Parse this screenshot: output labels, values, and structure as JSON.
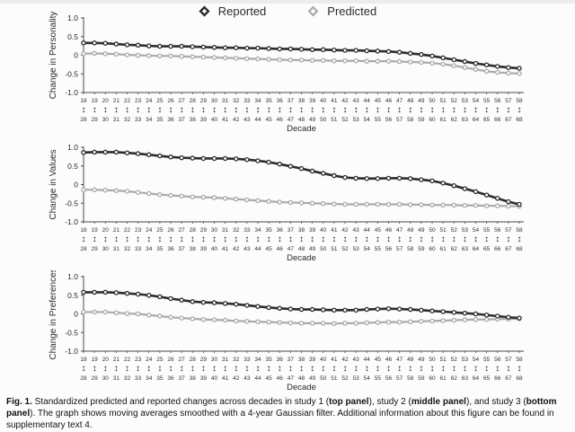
{
  "legend": {
    "reported": "Reported",
    "predicted": "Predicted"
  },
  "colors": {
    "reported": "#2d2d2d",
    "predicted": "#aaaaaa",
    "axis": "#4a4a4a",
    "tick_text": "#2a2a2a",
    "x_text": "#333333",
    "marker_fill": "#ffffff"
  },
  "x_axis": {
    "label": "Decade",
    "arrow_icon": "↕",
    "row1": [
      18,
      19,
      20,
      21,
      22,
      23,
      24,
      25,
      26,
      27,
      28,
      29,
      30,
      31,
      32,
      33,
      34,
      35,
      36,
      37,
      38,
      39,
      40,
      41,
      42,
      43,
      44,
      45,
      46,
      47,
      48,
      49,
      50,
      51,
      52,
      53,
      54,
      55,
      56,
      57,
      58
    ],
    "row2": [
      28,
      29,
      30,
      31,
      32,
      33,
      34,
      35,
      36,
      37,
      38,
      39,
      40,
      41,
      42,
      43,
      44,
      45,
      46,
      47,
      48,
      49,
      50,
      51,
      52,
      53,
      54,
      55,
      56,
      57,
      58,
      59,
      60,
      61,
      62,
      63,
      64,
      65,
      66,
      67,
      68
    ]
  },
  "y_axis": {
    "tick_labels": [
      "1.0",
      "0.5",
      "0",
      "-0.5",
      "-1.0"
    ],
    "tick_values": [
      1.0,
      0.5,
      0,
      -0.5,
      -1.0
    ],
    "min": -1.0,
    "max": 1.0
  },
  "chart_data": [
    {
      "type": "line",
      "panel": "top",
      "study": "study 1",
      "ylabel": "Change in Personality",
      "xlabel": "Decade",
      "ylim": [
        -1.0,
        1.0
      ],
      "x": [
        18,
        19,
        20,
        21,
        22,
        23,
        24,
        25,
        26,
        27,
        28,
        29,
        30,
        31,
        32,
        33,
        34,
        35,
        36,
        37,
        38,
        39,
        40,
        41,
        42,
        43,
        44,
        45,
        46,
        47,
        48,
        49,
        50,
        51,
        52,
        53,
        54,
        55,
        56,
        57,
        58
      ],
      "series": [
        {
          "name": "Reported",
          "values": [
            0.33,
            0.33,
            0.32,
            0.3,
            0.28,
            0.27,
            0.25,
            0.24,
            0.24,
            0.24,
            0.23,
            0.22,
            0.21,
            0.2,
            0.2,
            0.19,
            0.19,
            0.18,
            0.17,
            0.17,
            0.16,
            0.15,
            0.15,
            0.14,
            0.13,
            0.13,
            0.12,
            0.11,
            0.1,
            0.08,
            0.05,
            0.02,
            -0.02,
            -0.07,
            -0.12,
            -0.17,
            -0.22,
            -0.26,
            -0.3,
            -0.33,
            -0.35
          ]
        },
        {
          "name": "Predicted",
          "values": [
            0.04,
            0.05,
            0.04,
            0.03,
            0.01,
            0.0,
            -0.01,
            -0.02,
            -0.02,
            -0.03,
            -0.04,
            -0.05,
            -0.06,
            -0.07,
            -0.08,
            -0.09,
            -0.1,
            -0.11,
            -0.12,
            -0.13,
            -0.13,
            -0.14,
            -0.14,
            -0.15,
            -0.15,
            -0.15,
            -0.16,
            -0.16,
            -0.16,
            -0.17,
            -0.18,
            -0.19,
            -0.21,
            -0.24,
            -0.28,
            -0.33,
            -0.38,
            -0.43,
            -0.46,
            -0.48,
            -0.49
          ]
        }
      ]
    },
    {
      "type": "line",
      "panel": "middle",
      "study": "study 2",
      "ylabel": "Change in Values",
      "xlabel": "Decade",
      "ylim": [
        -1.0,
        1.0
      ],
      "x": [
        18,
        19,
        20,
        21,
        22,
        23,
        24,
        25,
        26,
        27,
        28,
        29,
        30,
        31,
        32,
        33,
        34,
        35,
        36,
        37,
        38,
        39,
        40,
        41,
        42,
        43,
        44,
        45,
        46,
        47,
        48,
        49,
        50,
        51,
        52,
        53,
        54,
        55,
        56,
        57,
        58
      ],
      "series": [
        {
          "name": "Reported",
          "values": [
            0.86,
            0.87,
            0.87,
            0.87,
            0.85,
            0.83,
            0.8,
            0.77,
            0.74,
            0.72,
            0.71,
            0.7,
            0.7,
            0.7,
            0.69,
            0.67,
            0.64,
            0.6,
            0.55,
            0.49,
            0.43,
            0.36,
            0.3,
            0.24,
            0.19,
            0.17,
            0.16,
            0.16,
            0.17,
            0.17,
            0.16,
            0.13,
            0.1,
            0.04,
            -0.03,
            -0.11,
            -0.19,
            -0.28,
            -0.37,
            -0.46,
            -0.53
          ]
        },
        {
          "name": "Predicted",
          "values": [
            -0.14,
            -0.14,
            -0.15,
            -0.16,
            -0.18,
            -0.21,
            -0.24,
            -0.27,
            -0.29,
            -0.31,
            -0.33,
            -0.34,
            -0.35,
            -0.37,
            -0.39,
            -0.41,
            -0.43,
            -0.45,
            -0.47,
            -0.48,
            -0.49,
            -0.5,
            -0.51,
            -0.52,
            -0.53,
            -0.53,
            -0.53,
            -0.53,
            -0.53,
            -0.53,
            -0.54,
            -0.54,
            -0.55,
            -0.55,
            -0.55,
            -0.56,
            -0.56,
            -0.57,
            -0.57,
            -0.58,
            -0.58
          ]
        }
      ]
    },
    {
      "type": "line",
      "panel": "bottom",
      "study": "study 3",
      "ylabel": "Change in Preferences",
      "xlabel": "Decade",
      "ylim": [
        -1.0,
        1.0
      ],
      "x": [
        18,
        19,
        20,
        21,
        22,
        23,
        24,
        25,
        26,
        27,
        28,
        29,
        30,
        31,
        32,
        33,
        34,
        35,
        36,
        37,
        38,
        39,
        40,
        41,
        42,
        43,
        44,
        45,
        46,
        47,
        48,
        49,
        50,
        51,
        52,
        53,
        54,
        55,
        56,
        57,
        58
      ],
      "series": [
        {
          "name": "Reported",
          "values": [
            0.58,
            0.58,
            0.58,
            0.57,
            0.55,
            0.53,
            0.5,
            0.46,
            0.41,
            0.37,
            0.33,
            0.31,
            0.3,
            0.28,
            0.26,
            0.23,
            0.2,
            0.17,
            0.15,
            0.13,
            0.12,
            0.12,
            0.11,
            0.1,
            0.1,
            0.1,
            0.12,
            0.13,
            0.14,
            0.13,
            0.12,
            0.1,
            0.08,
            0.06,
            0.04,
            0.02,
            0.0,
            -0.03,
            -0.06,
            -0.09,
            -0.11
          ]
        },
        {
          "name": "Predicted",
          "values": [
            0.05,
            0.05,
            0.05,
            0.03,
            0.01,
            0.0,
            -0.03,
            -0.06,
            -0.09,
            -0.11,
            -0.13,
            -0.15,
            -0.16,
            -0.17,
            -0.19,
            -0.2,
            -0.21,
            -0.22,
            -0.23,
            -0.24,
            -0.25,
            -0.25,
            -0.25,
            -0.26,
            -0.25,
            -0.25,
            -0.24,
            -0.23,
            -0.22,
            -0.22,
            -0.21,
            -0.2,
            -0.19,
            -0.18,
            -0.17,
            -0.16,
            -0.15,
            -0.15,
            -0.14,
            -0.14,
            -0.13
          ]
        }
      ]
    }
  ],
  "caption": {
    "segments": [
      {
        "text": "Fig. 1.",
        "bold": true
      },
      {
        "text": " Standardized predicted and reported changes across decades in study 1 (",
        "bold": false
      },
      {
        "text": "top panel",
        "bold": true
      },
      {
        "text": "), study 2 (",
        "bold": false
      },
      {
        "text": "middle panel",
        "bold": true
      },
      {
        "text": "), and study 3 (",
        "bold": false
      },
      {
        "text": "bottom panel",
        "bold": true
      },
      {
        "text": "). The graph shows moving averages smoothed with a 4-year Gaussian filter. Additional information about this figure can be found in supplementary text 4.",
        "bold": false
      }
    ]
  }
}
